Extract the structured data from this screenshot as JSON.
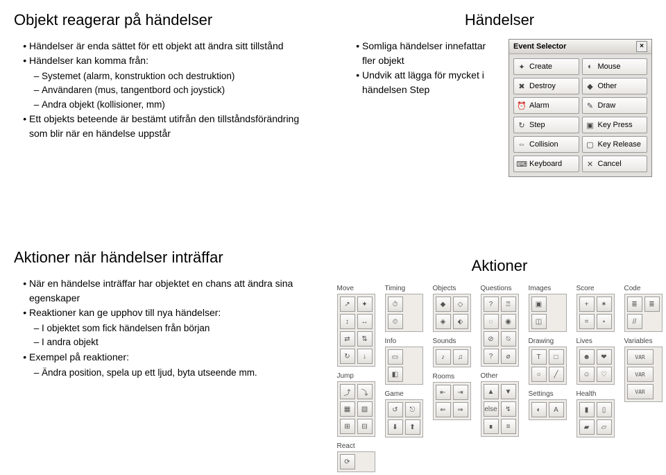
{
  "slide1": {
    "title": "Objekt reagerar på händelser",
    "b1": "Händelser är enda sättet för ett objekt att ändra sitt tillstånd",
    "b2": "Händelser kan komma från:",
    "b2a": "Systemet (alarm, konstruktion och destruktion)",
    "b2b": "Användaren (mus, tangentbord och joystick)",
    "b2c": "Andra objekt (kollisioner, mm)",
    "b3": "Ett objekts beteende är bestämt utifrån den tillståndsförändring som blir när en händelse uppstår"
  },
  "slide2": {
    "title": "Händelser",
    "b1": "Somliga händelser innefattar fler objekt",
    "b2": "Undvik att lägga för mycket i händelsen Step",
    "evtsel_title": "Event Selector",
    "events": {
      "create": "Create",
      "mouse": "Mouse",
      "destroy": "Destroy",
      "other": "Other",
      "alarm": "Alarm",
      "draw": "Draw",
      "step": "Step",
      "keypress": "Key Press",
      "collision": "Collision",
      "keyrel": "Key Release",
      "keyboard": "Keyboard",
      "cancel": "Cancel"
    }
  },
  "slide3": {
    "title": "Aktioner när händelser inträffar",
    "b1": "När en händelse inträffar har objektet en chans att ändra sina egenskaper",
    "b2": "Reaktioner kan ge upphov till nya händelser:",
    "b2a": "I objektet som fick händelsen från början",
    "b2b": "I andra objekt",
    "b3": "Exempel på reaktioner:",
    "b3a": "Ändra position, spela up ett ljud, byta utseende mm."
  },
  "slide4": {
    "title": "Aktioner",
    "groups": {
      "move": "Move",
      "jump": "Jump",
      "react": "React",
      "timing": "Timing",
      "info": "Info",
      "game": "Game",
      "objects": "Objects",
      "sounds": "Sounds",
      "rooms": "Rooms",
      "questions": "Questions",
      "other": "Other",
      "images": "Images",
      "drawing": "Drawing",
      "settings": "Settings",
      "score": "Score",
      "lives": "Lives",
      "health": "Health",
      "code": "Code",
      "variables": "Variables"
    },
    "var_label": "VAR"
  },
  "colors": {
    "panel_bg": "#e2e0dc",
    "panel_border": "#9a9a9a",
    "btn_grad_top": "#fdfdfd",
    "btn_grad_bot": "#e3e1db"
  }
}
